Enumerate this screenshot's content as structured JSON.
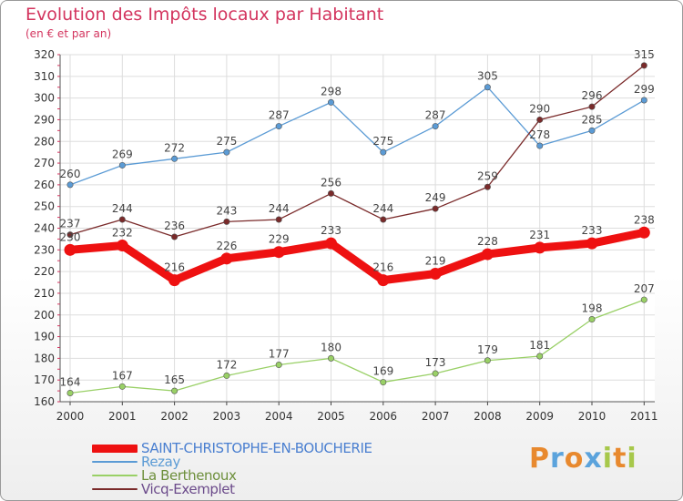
{
  "chart_data": {
    "type": "line",
    "title": "Evolution des Impôts locaux par Habitant",
    "subtitle": "(en € et par an)",
    "xlabel": "",
    "ylabel": "",
    "ylim": [
      160,
      320
    ],
    "yticks": [
      160,
      170,
      180,
      190,
      200,
      210,
      220,
      230,
      240,
      250,
      260,
      270,
      280,
      290,
      300,
      310,
      320
    ],
    "categories": [
      "2000",
      "2001",
      "2002",
      "2003",
      "2004",
      "2005",
      "2006",
      "2007",
      "2008",
      "2009",
      "2010",
      "2011"
    ],
    "grid": true,
    "legend_position": "bottom-left",
    "series": [
      {
        "name": "SAINT-CHRISTOPHE-EN-BOUCHERIE",
        "color": "#ee1111",
        "values": [
          230,
          232,
          216,
          226,
          229,
          233,
          216,
          219,
          228,
          231,
          233,
          238
        ]
      },
      {
        "name": "Rezay",
        "color": "#5b9bd5",
        "values": [
          260,
          269,
          272,
          275,
          287,
          298,
          275,
          287,
          305,
          278,
          285,
          299
        ]
      },
      {
        "name": "La Berthenoux",
        "color": "#99d066",
        "values": [
          164,
          167,
          165,
          172,
          177,
          180,
          169,
          173,
          179,
          181,
          198,
          207
        ]
      },
      {
        "name": "Vicq-Exemplet",
        "color": "#7a2a2a",
        "values": [
          237,
          244,
          236,
          243,
          244,
          256,
          244,
          249,
          259,
          290,
          296,
          315
        ]
      }
    ]
  },
  "brand": {
    "letters": [
      {
        "char": "P",
        "color": "#e8892e"
      },
      {
        "char": "r",
        "color": "#5ba3dc"
      },
      {
        "char": "o",
        "color": "#e8892e"
      },
      {
        "char": "x",
        "color": "#5ba3dc"
      },
      {
        "char": "i",
        "color": "#a7c84b"
      },
      {
        "char": "t",
        "color": "#e8892e"
      },
      {
        "char": "i",
        "color": "#a7c84b"
      }
    ]
  }
}
